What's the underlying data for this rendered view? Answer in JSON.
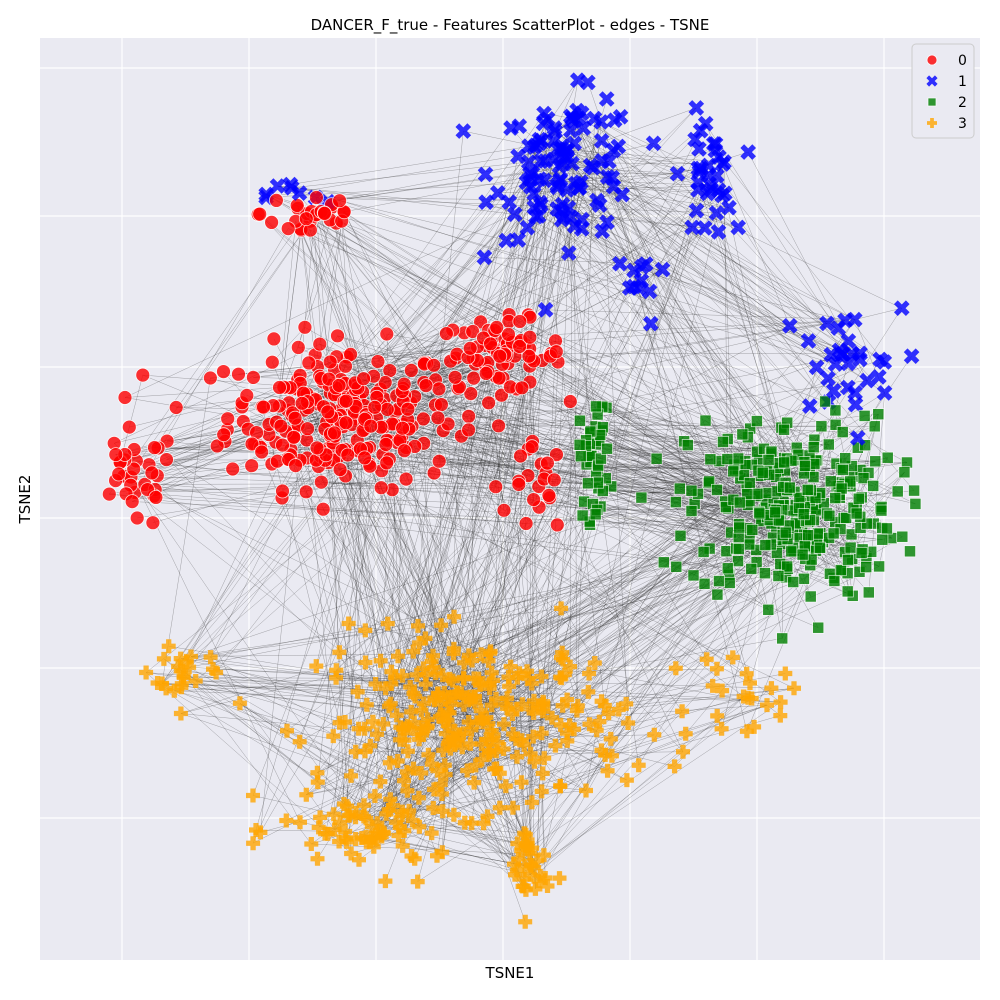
{
  "chart_data": {
    "type": "scatter",
    "title": "DANCER_F_true - Features ScatterPlot - edges - TSNE",
    "xlabel": "TSNE1",
    "ylabel": "TSNE2",
    "xlim": [
      -1.0,
      1.0
    ],
    "ylim": [
      -1.0,
      1.0
    ],
    "grid": true,
    "tick_labels_shown": false,
    "legend": {
      "placement": "top-right"
    },
    "edges": {
      "shown": true,
      "color": "#333333",
      "approx_count": 1800
    },
    "series": [
      {
        "name": "0",
        "marker": "circle",
        "color": "#ff0000",
        "approx_count": 420,
        "clusters": [
          {
            "center": [
              -0.36,
              0.18
            ],
            "spread": [
              0.22,
              0.14
            ],
            "share": 0.62
          },
          {
            "center": [
              -0.02,
              0.31
            ],
            "spread": [
              0.12,
              0.07
            ],
            "share": 0.18
          },
          {
            "center": [
              -0.42,
              0.62
            ],
            "spread": [
              0.1,
              0.06
            ],
            "share": 0.07
          },
          {
            "center": [
              -0.8,
              0.04
            ],
            "spread": [
              0.08,
              0.1
            ],
            "share": 0.08
          },
          {
            "center": [
              0.06,
              0.02
            ],
            "spread": [
              0.05,
              0.09
            ],
            "share": 0.05
          }
        ]
      },
      {
        "name": "1",
        "marker": "x",
        "color": "#0000ff",
        "approx_count": 190,
        "clusters": [
          {
            "center": [
              0.12,
              0.72
            ],
            "spread": [
              0.14,
              0.14
            ],
            "share": 0.55
          },
          {
            "center": [
              0.42,
              0.7
            ],
            "spread": [
              0.05,
              0.12
            ],
            "share": 0.18
          },
          {
            "center": [
              0.7,
              0.28
            ],
            "spread": [
              0.12,
              0.12
            ],
            "share": 0.17
          },
          {
            "center": [
              -0.45,
              0.66
            ],
            "spread": [
              0.06,
              0.03
            ],
            "share": 0.04
          },
          {
            "center": [
              0.28,
              0.46
            ],
            "spread": [
              0.05,
              0.08
            ],
            "share": 0.06
          }
        ]
      },
      {
        "name": "2",
        "marker": "square",
        "color": "#008000",
        "approx_count": 360,
        "clusters": [
          {
            "center": [
              0.6,
              -0.02
            ],
            "spread": [
              0.2,
              0.18
            ],
            "share": 0.88
          },
          {
            "center": [
              0.18,
              0.09
            ],
            "spread": [
              0.03,
              0.12
            ],
            "share": 0.12
          }
        ]
      },
      {
        "name": "3",
        "marker": "plus",
        "color": "#ffa500",
        "approx_count": 420,
        "clusters": [
          {
            "center": [
              -0.08,
              -0.48
            ],
            "spread": [
              0.3,
              0.17
            ],
            "share": 0.66
          },
          {
            "center": [
              -0.3,
              -0.72
            ],
            "spread": [
              0.17,
              0.08
            ],
            "share": 0.16
          },
          {
            "center": [
              0.04,
              -0.8
            ],
            "spread": [
              0.04,
              0.1
            ],
            "share": 0.08
          },
          {
            "center": [
              -0.7,
              -0.37
            ],
            "spread": [
              0.06,
              0.06
            ],
            "share": 0.05
          },
          {
            "center": [
              0.5,
              -0.43
            ],
            "spread": [
              0.1,
              0.06
            ],
            "share": 0.05
          }
        ]
      }
    ]
  }
}
